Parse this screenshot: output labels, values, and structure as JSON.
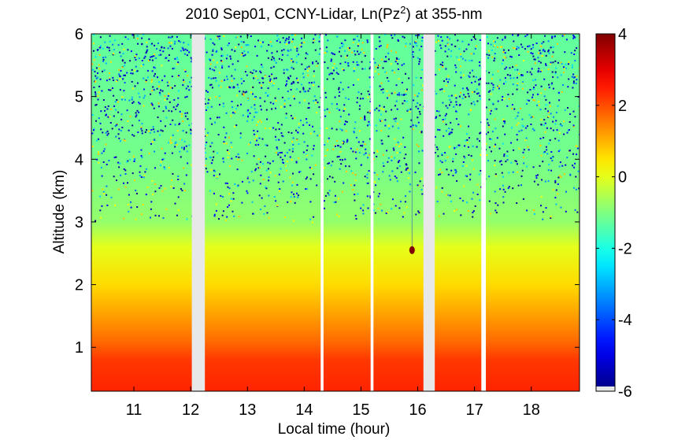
{
  "chart_data": {
    "type": "heatmap",
    "title": "2010 Sep01, CCNY-Lidar, Ln(Pz",
    "title_superscript": "2",
    "title_suffix": ") at 355-nm",
    "xlabel": "Local time (hour)",
    "ylabel": "Altitude (km)",
    "xlim": [
      10.25,
      18.85
    ],
    "ylim": [
      0.3,
      6.0
    ],
    "x_ticks": [
      11,
      12,
      13,
      14,
      15,
      16,
      17,
      18
    ],
    "y_ticks": [
      1,
      2,
      3,
      4,
      5,
      6
    ],
    "colorbar": {
      "range": [
        -6,
        4
      ],
      "ticks": [
        -6,
        -4,
        -2,
        0,
        2,
        4
      ],
      "colormap": "jet"
    },
    "data_gaps": [
      {
        "start": 12.02,
        "end": 12.25,
        "fill": "#e8e8e8"
      },
      {
        "start": 14.29,
        "end": 14.34,
        "fill": "#ffffff"
      },
      {
        "start": 15.17,
        "end": 15.22,
        "fill": "#ffffff"
      },
      {
        "start": 16.1,
        "end": 16.3,
        "fill": "#e8e8e8"
      },
      {
        "start": 17.12,
        "end": 17.2,
        "fill": "#ffffff"
      }
    ],
    "altitude_profile": [
      {
        "altitude": 0.3,
        "value": 2.4
      },
      {
        "altitude": 0.8,
        "value": 2.2
      },
      {
        "altitude": 1.1,
        "value": 1.7
      },
      {
        "altitude": 1.5,
        "value": 1.2
      },
      {
        "altitude": 2.0,
        "value": 0.6
      },
      {
        "altitude": 2.6,
        "value": 0.0
      },
      {
        "altitude": 3.0,
        "value": -0.8
      },
      {
        "altitude": 4.0,
        "value": -1.1
      },
      {
        "altitude": 5.0,
        "value": -1.2
      },
      {
        "altitude": 6.0,
        "value": -1.3
      }
    ],
    "annotations": [
      {
        "x": 15.9,
        "y": 2.55,
        "value": 4,
        "note": "red spot"
      }
    ]
  }
}
